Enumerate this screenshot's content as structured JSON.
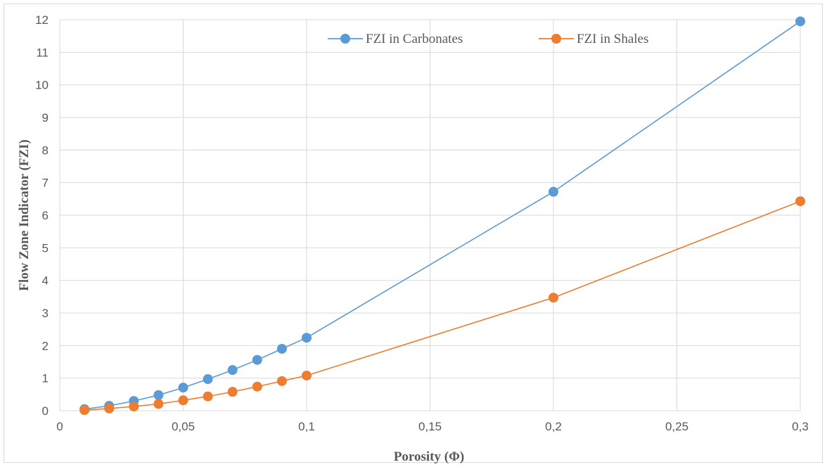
{
  "chart_data": {
    "type": "line",
    "xlabel": "Porosity (Φ)",
    "ylabel": "Flow Zone Indicator (FZI)",
    "xlim": [
      0,
      0.3
    ],
    "ylim": [
      0,
      12
    ],
    "x_ticks": [
      "0",
      "0,05",
      "0,1",
      "0,15",
      "0,2",
      "0,25",
      "0,3"
    ],
    "x_tick_values": [
      0,
      0.05,
      0.1,
      0.15,
      0.2,
      0.25,
      0.3
    ],
    "y_ticks": [
      "0",
      "1",
      "2",
      "3",
      "4",
      "5",
      "6",
      "7",
      "8",
      "9",
      "10",
      "11",
      "12"
    ],
    "y_tick_values": [
      0,
      1,
      2,
      3,
      4,
      5,
      6,
      7,
      8,
      9,
      10,
      11,
      12
    ],
    "grid": true,
    "legend_position": "top-center",
    "series": [
      {
        "name": "FZI in Carbonates",
        "color": "#5B9BD5",
        "x": [
          0.01,
          0.02,
          0.03,
          0.04,
          0.05,
          0.06,
          0.07,
          0.08,
          0.09,
          0.1,
          0.2,
          0.3
        ],
        "y": [
          0.05,
          0.15,
          0.3,
          0.48,
          0.71,
          0.97,
          1.25,
          1.56,
          1.9,
          2.24,
          6.72,
          11.95
        ]
      },
      {
        "name": "FZI in Shales",
        "color": "#ED7D31",
        "x": [
          0.01,
          0.02,
          0.03,
          0.04,
          0.05,
          0.06,
          0.07,
          0.08,
          0.09,
          0.1,
          0.2,
          0.3
        ],
        "y": [
          0.02,
          0.07,
          0.13,
          0.21,
          0.32,
          0.44,
          0.58,
          0.74,
          0.91,
          1.08,
          3.47,
          6.43
        ]
      }
    ]
  }
}
